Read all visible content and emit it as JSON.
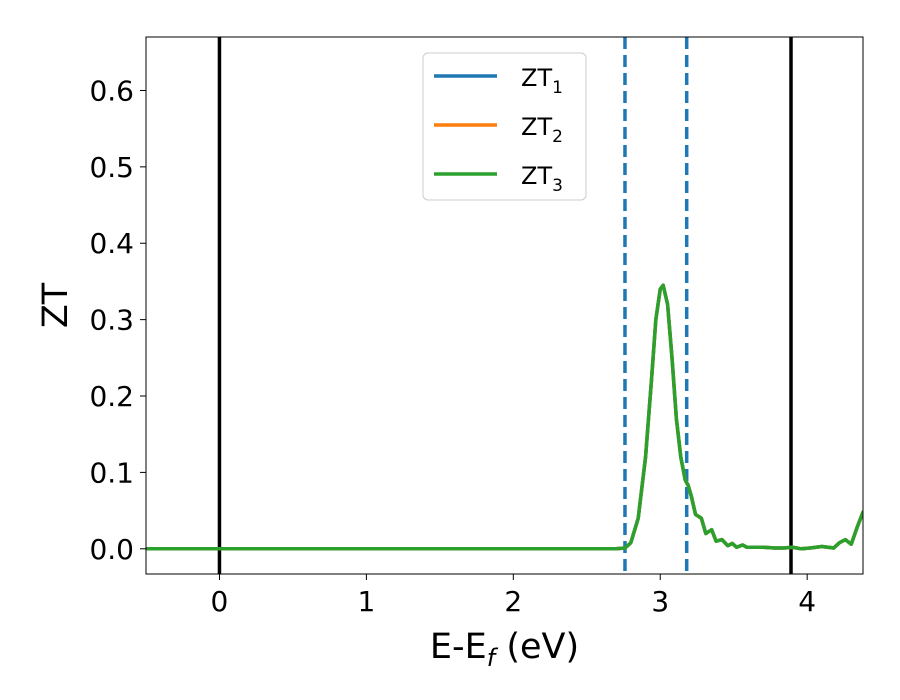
{
  "chart_data": {
    "type": "line",
    "title": "",
    "xlabel": {
      "main": "E-E",
      "sub": "f",
      "tail": " (eV)"
    },
    "ylabel": "ZT",
    "xlim": [
      -0.5,
      4.38
    ],
    "ylim": [
      -0.033,
      0.67
    ],
    "xticks": [
      0,
      1,
      2,
      3,
      4
    ],
    "xtick_labels": [
      "0",
      "1",
      "2",
      "3",
      "4"
    ],
    "yticks": [
      0.0,
      0.1,
      0.2,
      0.3,
      0.4,
      0.5,
      0.6
    ],
    "ytick_labels": [
      "0.0",
      "0.1",
      "0.2",
      "0.3",
      "0.4",
      "0.5",
      "0.6"
    ],
    "grid": false,
    "legend_position": "top-center",
    "vertical_lines": [
      {
        "x": 0.0,
        "color": "#000000",
        "style": "solid"
      },
      {
        "x": 3.89,
        "color": "#000000",
        "style": "solid"
      },
      {
        "x": 2.76,
        "color": "#1f77b4",
        "style": "dashed"
      },
      {
        "x": 3.18,
        "color": "#1f77b4",
        "style": "dashed"
      }
    ],
    "series": [
      {
        "name": "ZT1",
        "label_main": "ZT",
        "label_sub": "1",
        "color": "#1f77b4",
        "x": [
          -0.5,
          2.6,
          2.7,
          2.76,
          2.8,
          2.85,
          2.9,
          2.94,
          2.97,
          3.0,
          3.02,
          3.05,
          3.08,
          3.11,
          3.14,
          3.17,
          3.19,
          3.21,
          3.24,
          3.28,
          3.31,
          3.35,
          3.38,
          3.42,
          3.46,
          3.49,
          3.52,
          3.56,
          3.59,
          3.63,
          3.7,
          3.78,
          3.84,
          3.9,
          3.96,
          4.02,
          4.1,
          4.14,
          4.18,
          4.22,
          4.26,
          4.3,
          4.34,
          4.38
        ],
        "y": [
          0.0,
          0.0,
          0.0,
          0.001,
          0.008,
          0.04,
          0.12,
          0.22,
          0.3,
          0.34,
          0.345,
          0.32,
          0.25,
          0.17,
          0.12,
          0.09,
          0.083,
          0.07,
          0.045,
          0.04,
          0.02,
          0.025,
          0.01,
          0.012,
          0.004,
          0.007,
          0.002,
          0.005,
          0.002,
          0.002,
          0.002,
          0.001,
          0.001,
          0.002,
          0.0,
          0.001,
          0.003,
          0.002,
          0.001,
          0.008,
          0.012,
          0.006,
          0.028,
          0.048
        ]
      },
      {
        "name": "ZT2",
        "label_main": "ZT",
        "label_sub": "2",
        "color": "#ff7f0e",
        "x": [
          -0.5,
          2.6,
          2.7,
          2.76,
          2.8,
          2.85,
          2.9,
          2.94,
          2.97,
          3.0,
          3.02,
          3.05,
          3.08,
          3.11,
          3.14,
          3.17,
          3.19,
          3.21,
          3.24,
          3.28,
          3.31,
          3.35,
          3.38,
          3.42,
          3.46,
          3.49,
          3.52,
          3.56,
          3.59,
          3.63,
          3.7,
          3.78,
          3.84,
          3.9,
          3.96,
          4.02,
          4.1,
          4.14,
          4.18,
          4.22,
          4.26,
          4.3,
          4.34,
          4.38
        ],
        "y": [
          0.0,
          0.0,
          0.0,
          0.001,
          0.008,
          0.04,
          0.12,
          0.22,
          0.3,
          0.34,
          0.345,
          0.32,
          0.25,
          0.17,
          0.12,
          0.09,
          0.083,
          0.07,
          0.045,
          0.04,
          0.02,
          0.025,
          0.01,
          0.012,
          0.004,
          0.007,
          0.002,
          0.005,
          0.002,
          0.002,
          0.002,
          0.001,
          0.001,
          0.002,
          0.0,
          0.001,
          0.003,
          0.002,
          0.001,
          0.008,
          0.012,
          0.006,
          0.028,
          0.048
        ]
      },
      {
        "name": "ZT3",
        "label_main": "ZT",
        "label_sub": "3",
        "color": "#2ca02c",
        "x": [
          -0.5,
          2.6,
          2.7,
          2.76,
          2.8,
          2.85,
          2.9,
          2.94,
          2.97,
          3.0,
          3.02,
          3.05,
          3.08,
          3.11,
          3.14,
          3.17,
          3.19,
          3.21,
          3.24,
          3.28,
          3.31,
          3.35,
          3.38,
          3.42,
          3.46,
          3.49,
          3.52,
          3.56,
          3.59,
          3.63,
          3.7,
          3.78,
          3.84,
          3.9,
          3.96,
          4.02,
          4.1,
          4.14,
          4.18,
          4.22,
          4.26,
          4.3,
          4.34,
          4.38
        ],
        "y": [
          0.0,
          0.0,
          0.0,
          0.001,
          0.008,
          0.04,
          0.12,
          0.22,
          0.3,
          0.34,
          0.345,
          0.32,
          0.25,
          0.17,
          0.12,
          0.09,
          0.083,
          0.07,
          0.045,
          0.04,
          0.02,
          0.025,
          0.01,
          0.012,
          0.004,
          0.007,
          0.002,
          0.005,
          0.002,
          0.002,
          0.002,
          0.001,
          0.001,
          0.002,
          0.0,
          0.001,
          0.003,
          0.002,
          0.001,
          0.008,
          0.012,
          0.006,
          0.028,
          0.048
        ]
      }
    ]
  }
}
